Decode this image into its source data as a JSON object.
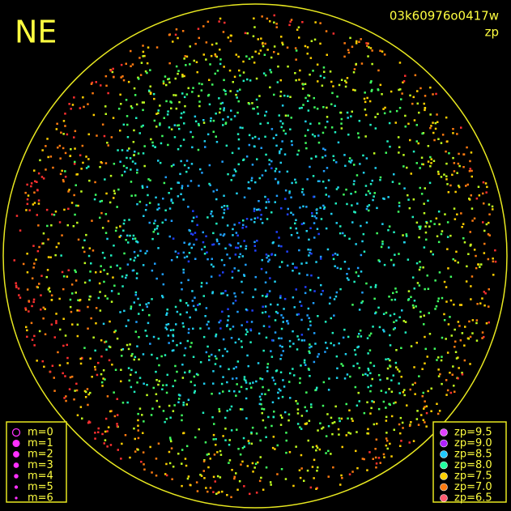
{
  "header": {
    "direction": "NE",
    "image_id": "03k60976o0417w",
    "mode": "zp"
  },
  "legend_magnitude": {
    "color": "#ff30ff",
    "items": [
      "m=0",
      "m=1",
      "m=2",
      "m=3",
      "m=4",
      "m=5",
      "m=6"
    ]
  },
  "legend_zp": {
    "items": [
      {
        "label": "zp=9.5",
        "color": "#e040ff"
      },
      {
        "label": "zp=9.0",
        "color": "#b020ff"
      },
      {
        "label": "zp=8.5",
        "color": "#20c8ff"
      },
      {
        "label": "zp=8.0",
        "color": "#20ffa0"
      },
      {
        "label": "zp=7.5",
        "color": "#ffd000"
      },
      {
        "label": "zp=7.0",
        "color": "#ff7a10"
      },
      {
        "label": "zp=6.5",
        "color": "#ff5a70"
      }
    ]
  }
}
